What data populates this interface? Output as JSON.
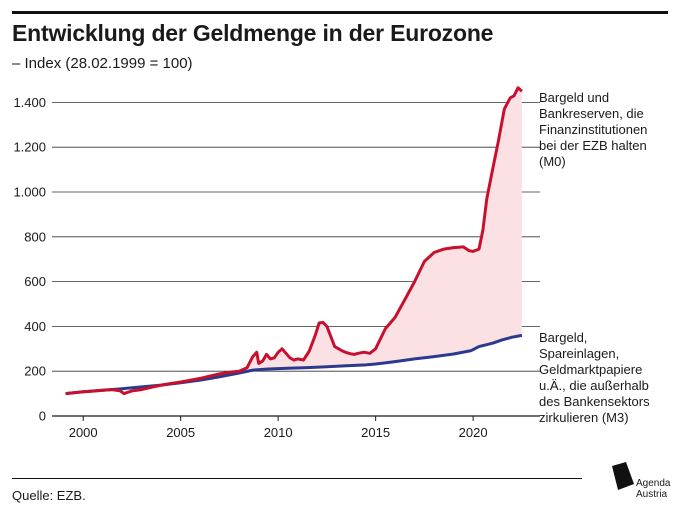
{
  "header": {
    "title": "Entwicklung der Geldmenge in der Eurozone",
    "subtitle": "– Index (28.02.1999 = 100)"
  },
  "footer": {
    "source": "Quelle: EZB.",
    "logo_line1": "Agenda",
    "logo_line2": "Austria"
  },
  "colors": {
    "m0": "#c8102e",
    "m3": "#2b3a8c",
    "fill": "#fbe1e3"
  },
  "chart_data": {
    "type": "line",
    "title": "Entwicklung der Geldmenge in der Eurozone",
    "subtitle": "– Index (28.02.1999 = 100)",
    "xlim": [
      1998.4,
      2024.2
    ],
    "ylim": [
      0,
      1500
    ],
    "yticks": [
      0,
      200,
      400,
      600,
      800,
      1000,
      1200,
      1400
    ],
    "ytick_labels": [
      "0",
      "200",
      "400",
      "600",
      "800",
      "1.000",
      "1.200",
      "1.400"
    ],
    "xticks": [
      2000,
      2005,
      2010,
      2015,
      2020
    ],
    "xtick_labels": [
      "2000",
      "2005",
      "2010",
      "2015",
      "2020"
    ],
    "grid": "horizontal",
    "series": [
      {
        "key": "m0",
        "label_lines": [
          "Bargeld und",
          "Bankreserven, die",
          "Finanzinstitutionen",
          "bei der EZB halten",
          "(M0)"
        ],
        "x": [
          1999.1,
          1999.5,
          2000.0,
          2000.5,
          2001.0,
          2001.5,
          2001.9,
          2002.1,
          2002.5,
          2003.0,
          2003.5,
          2004.0,
          2004.5,
          2005.0,
          2005.5,
          2006.0,
          2006.5,
          2007.0,
          2007.5,
          2008.0,
          2008.4,
          2008.7,
          2008.9,
          2009.0,
          2009.2,
          2009.4,
          2009.6,
          2009.8,
          2010.0,
          2010.2,
          2010.4,
          2010.6,
          2010.8,
          2011.0,
          2011.3,
          2011.6,
          2011.9,
          2012.1,
          2012.3,
          2012.5,
          2012.7,
          2012.9,
          2013.1,
          2013.3,
          2013.5,
          2013.7,
          2013.9,
          2014.1,
          2014.4,
          2014.7,
          2015.0,
          2015.5,
          2016.0,
          2016.5,
          2017.0,
          2017.5,
          2018.0,
          2018.5,
          2019.0,
          2019.5,
          2019.8,
          2020.0,
          2020.3,
          2020.5,
          2020.7,
          2021.0,
          2021.3,
          2021.6,
          2021.9,
          2022.1,
          2022.3,
          2022.5
        ],
        "y": [
          100,
          104,
          108,
          111,
          115,
          118,
          112,
          100,
          112,
          118,
          128,
          138,
          145,
          152,
          160,
          168,
          178,
          188,
          195,
          200,
          215,
          265,
          285,
          235,
          245,
          275,
          255,
          260,
          285,
          300,
          280,
          260,
          250,
          255,
          250,
          290,
          360,
          415,
          418,
          400,
          355,
          310,
          300,
          290,
          283,
          278,
          275,
          280,
          285,
          280,
          300,
          390,
          440,
          520,
          600,
          690,
          730,
          745,
          752,
          755,
          738,
          735,
          745,
          830,
          970,
          1100,
          1230,
          1370,
          1420,
          1430,
          1465,
          1450
        ]
      },
      {
        "key": "m3",
        "label_lines": [
          "Bargeld,",
          "Spareinlagen,",
          "Geldmarktpapiere",
          "u.Ä., die außerhalb",
          "des Bankensektors",
          "zirkulieren (M3)"
        ],
        "x": [
          1999.1,
          2000.0,
          2001.0,
          2002.0,
          2003.0,
          2004.0,
          2005.0,
          2006.0,
          2007.0,
          2008.0,
          2008.7,
          2009.5,
          2010.5,
          2011.5,
          2012.5,
          2013.5,
          2014.5,
          2015.0,
          2016.0,
          2017.0,
          2018.0,
          2019.0,
          2019.9,
          2020.3,
          2021.0,
          2021.5,
          2022.0,
          2022.5
        ],
        "y": [
          100,
          108,
          115,
          122,
          130,
          138,
          148,
          160,
          175,
          192,
          205,
          210,
          213,
          216,
          220,
          224,
          228,
          232,
          243,
          255,
          265,
          277,
          292,
          310,
          325,
          340,
          352,
          360
        ]
      }
    ]
  }
}
